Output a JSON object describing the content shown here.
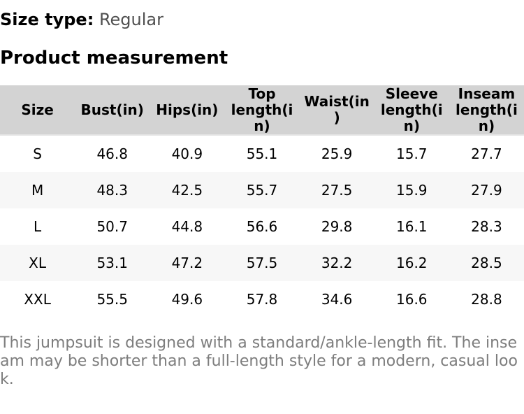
{
  "page": {
    "size_type_label": "Size type:",
    "size_type_value": "Regular",
    "section_title": "Product measurement",
    "note": "This jumpsuit is designed with a standard/ankle-length fit. The inseam may be shorter than a full-length style for a modern, casual look."
  },
  "table": {
    "headers": [
      "Size",
      "Bust(in)",
      "Hips(in)",
      "Top length(in)",
      "Waist(in)",
      "Sleeve length(in)",
      "Inseam length(in)"
    ],
    "rows": [
      [
        "S",
        "46.8",
        "40.9",
        "55.1",
        "25.9",
        "15.7",
        "27.7"
      ],
      [
        "M",
        "48.3",
        "42.5",
        "55.7",
        "27.5",
        "15.9",
        "27.9"
      ],
      [
        "L",
        "50.7",
        "44.8",
        "56.6",
        "29.8",
        "16.1",
        "28.3"
      ],
      [
        "XL",
        "53.1",
        "47.2",
        "57.5",
        "32.2",
        "16.2",
        "28.5"
      ],
      [
        "XXL",
        "55.5",
        "49.6",
        "57.8",
        "34.6",
        "16.6",
        "28.8"
      ]
    ]
  },
  "colors": {
    "header_bg": "#d3d3d3",
    "stripe_bg": "#f7f7f7",
    "note_text": "#7d7d7d",
    "size_type_value_text": "#505050"
  }
}
